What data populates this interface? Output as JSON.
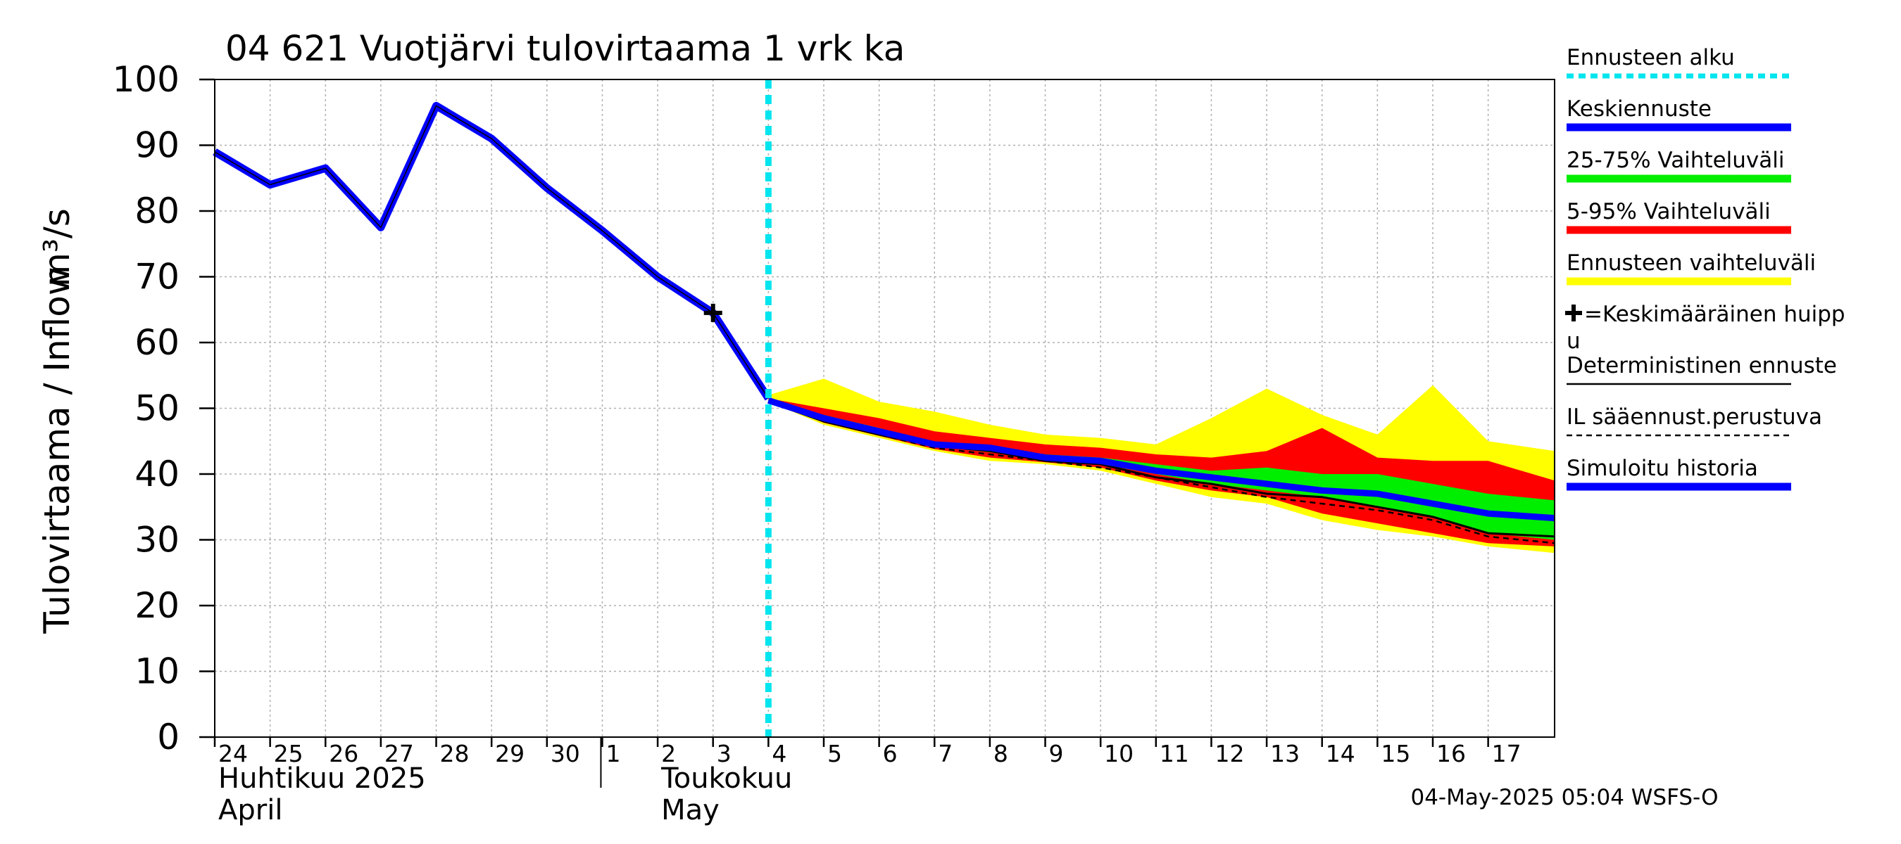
{
  "chart_data": {
    "type": "line",
    "title": "04 621 Vuotjärvi tulovirtaama 1 vrk ka",
    "ylabel": "Tulovirtaama / Inflow",
    "yunit": "m³/s",
    "ylim": [
      0,
      100
    ],
    "yticks": [
      0,
      10,
      20,
      30,
      40,
      50,
      60,
      70,
      80,
      90,
      100
    ],
    "xlim": [
      0,
      24.2
    ],
    "xticks": [
      {
        "x": 0,
        "label": "24"
      },
      {
        "x": 1,
        "label": "25"
      },
      {
        "x": 2,
        "label": "26"
      },
      {
        "x": 3,
        "label": "27"
      },
      {
        "x": 4,
        "label": "28"
      },
      {
        "x": 5,
        "label": "29"
      },
      {
        "x": 6,
        "label": "30"
      },
      {
        "x": 7,
        "label": "1"
      },
      {
        "x": 8,
        "label": "2"
      },
      {
        "x": 9,
        "label": "3"
      },
      {
        "x": 10,
        "label": "4"
      },
      {
        "x": 11,
        "label": "5"
      },
      {
        "x": 12,
        "label": "6"
      },
      {
        "x": 13,
        "label": "7"
      },
      {
        "x": 14,
        "label": "8"
      },
      {
        "x": 15,
        "label": "9"
      },
      {
        "x": 16,
        "label": "10"
      },
      {
        "x": 17,
        "label": "11"
      },
      {
        "x": 18,
        "label": "12"
      },
      {
        "x": 19,
        "label": "13"
      },
      {
        "x": 20,
        "label": "14"
      },
      {
        "x": 21,
        "label": "15"
      },
      {
        "x": 22,
        "label": "16"
      },
      {
        "x": 23,
        "label": "17"
      }
    ],
    "month_labels": [
      {
        "x": 0,
        "line1": "Huhtikuu  2025",
        "line2": "April"
      },
      {
        "x": 8,
        "line1": "Toukokuu",
        "line2": "May"
      }
    ],
    "month_separator_x": 7,
    "forecast_start_x": 10,
    "history": {
      "x": [
        0,
        1,
        2,
        3,
        4,
        5,
        6,
        7,
        8,
        9,
        10
      ],
      "y": [
        89,
        84,
        86.5,
        77.5,
        96,
        91,
        83.5,
        77,
        70,
        64.5,
        51.5
      ]
    },
    "peak_marker": {
      "x": 9,
      "y": 64.5
    },
    "forecast_x": [
      10,
      11,
      12,
      13,
      14,
      15,
      16,
      17,
      18,
      19,
      20,
      21,
      22,
      23,
      24.2
    ],
    "band_full_upper": [
      52,
      54.5,
      51,
      49.5,
      47.5,
      46,
      45.5,
      44.5,
      48.5,
      53,
      49,
      46,
      53.5,
      45,
      43.5
    ],
    "band_full_lower": [
      51,
      47.5,
      45.5,
      43.5,
      42,
      41.5,
      40.5,
      38.5,
      36.5,
      35.5,
      33,
      31.5,
      30.5,
      29,
      28
    ],
    "band_90_upper": [
      51.5,
      50,
      48.5,
      46.5,
      45.5,
      44.5,
      44,
      43,
      42.5,
      43.5,
      47,
      42.5,
      42,
      42,
      39
    ],
    "band_90_lower": [
      51.2,
      47.8,
      45.8,
      43.8,
      42.5,
      41.8,
      41,
      39,
      37.5,
      36.5,
      34,
      32.5,
      31,
      29.5,
      29
    ],
    "band_50_upper": [
      51.3,
      49,
      47,
      44.8,
      44,
      43,
      42.5,
      41.5,
      40.5,
      41,
      40,
      40,
      38.5,
      37,
      36
    ],
    "band_50_lower": [
      51.2,
      48.2,
      46.3,
      44.2,
      43.3,
      42.3,
      41.5,
      40,
      38.5,
      37.5,
      36.5,
      35,
      33.5,
      31,
      30
    ],
    "median": [
      51.2,
      48.5,
      46.5,
      44.5,
      44,
      42.5,
      42,
      40.5,
      39.5,
      38.5,
      37.5,
      37,
      35.5,
      34,
      33.3
    ],
    "deterministic": [
      51,
      48,
      46,
      44.3,
      43.5,
      42,
      41.5,
      39.5,
      38.5,
      37,
      36.5,
      35,
      33.5,
      31,
      30.5
    ],
    "il_weather": [
      51,
      48,
      46,
      44,
      43,
      42,
      41,
      39.5,
      38,
      36.5,
      35.5,
      34.5,
      33,
      30.5,
      29.5
    ],
    "timestamp": "04-May-2025 05:04 WSFS-O",
    "legend": [
      {
        "label": "Ennusteen alku",
        "color": "#00e5ee",
        "style": "dotted"
      },
      {
        "label": "Keskiennuste",
        "color": "#0000ff",
        "style": "thick"
      },
      {
        "label": "25-75% Vaihteluväli",
        "color": "#00ee00",
        "style": "thick"
      },
      {
        "label": "5-95% Vaihteluväli",
        "color": "#ff0000",
        "style": "thick"
      },
      {
        "label": "Ennusteen vaihteluväli",
        "color": "#ffff00",
        "style": "thick"
      },
      {
        "label": "=Keskimääräinen huipp",
        "label2": "u",
        "color": "#000000",
        "style": "plus"
      },
      {
        "label": "Deterministinen ennuste",
        "color": "#000000",
        "style": "thin"
      },
      {
        "label": "IL sääennust.perustuva",
        "color": "#000000",
        "style": "dashed"
      },
      {
        "label": "Simuloitu historia",
        "color": "#0000ff",
        "style": "thick"
      }
    ],
    "colors": {
      "history": "#0000ff",
      "median": "#0000ff",
      "band_full": "#ffff00",
      "band_90": "#ff0000",
      "band_50": "#00ee00",
      "forecast_start": "#00e5ee",
      "grid": "#b0b0b0",
      "axis": "#000000"
    }
  }
}
